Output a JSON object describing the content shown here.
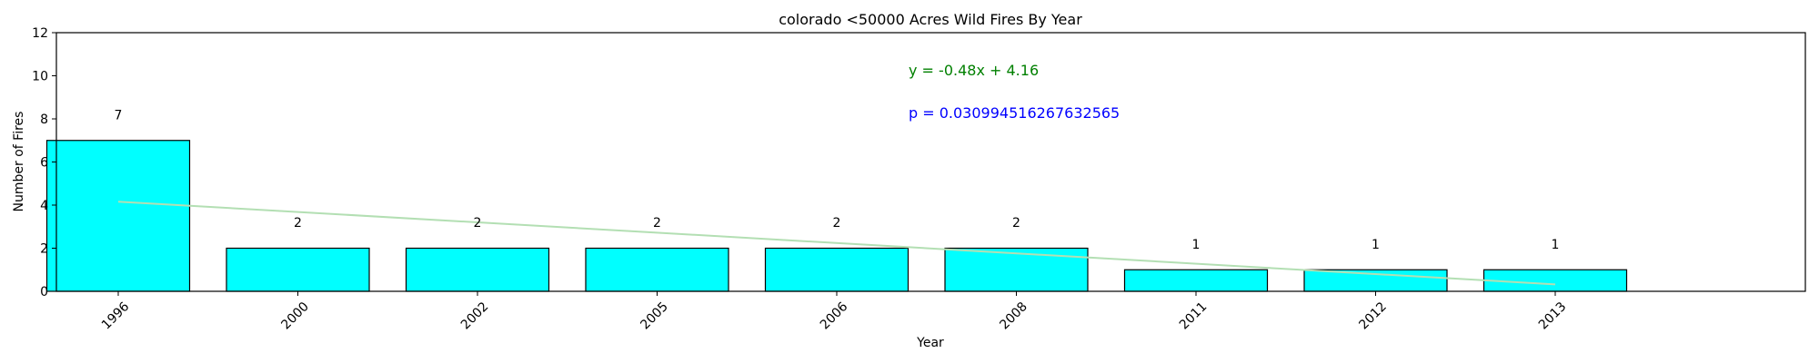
{
  "chart_data": {
    "type": "bar",
    "title": "colorado <50000 Acres Wild Fires By Year",
    "xlabel": "Year",
    "ylabel": "Number of Fires",
    "categories": [
      "1996",
      "2000",
      "2002",
      "2005",
      "2006",
      "2008",
      "2011",
      "2012",
      "2013"
    ],
    "values": [
      7,
      2,
      2,
      2,
      2,
      2,
      1,
      1,
      1
    ],
    "value_labels": [
      "7",
      "2",
      "2",
      "2",
      "2",
      "2",
      "1",
      "1",
      "1"
    ],
    "ylim": [
      0,
      12
    ],
    "yticks": [
      0,
      2,
      4,
      6,
      8,
      10,
      12
    ],
    "grid": false,
    "bar_color": "#00ffff",
    "bar_edge_color": "#000000",
    "trendline": {
      "slope": -0.48,
      "intercept": 4.16,
      "color": "#b3dfb3"
    },
    "annotations": {
      "equation": "y = -0.48x + 4.16",
      "equation_color": "#008000",
      "p_value": "p = 0.030994516267632565",
      "p_value_color": "#0000ff"
    }
  }
}
